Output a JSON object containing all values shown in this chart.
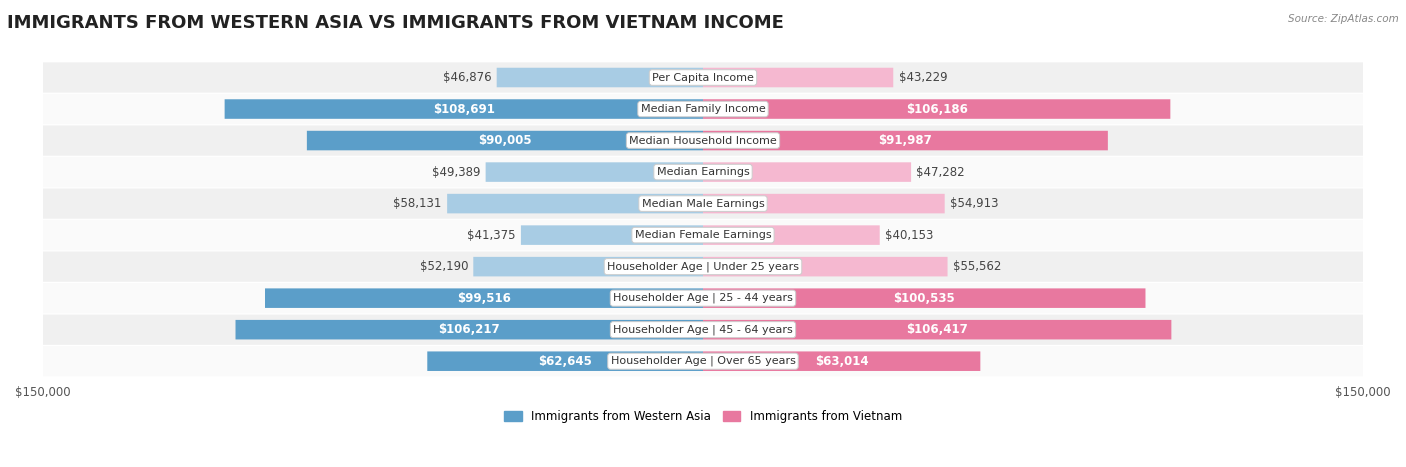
{
  "title": "IMMIGRANTS FROM WESTERN ASIA VS IMMIGRANTS FROM VIETNAM INCOME",
  "source": "Source: ZipAtlas.com",
  "categories": [
    "Per Capita Income",
    "Median Family Income",
    "Median Household Income",
    "Median Earnings",
    "Median Male Earnings",
    "Median Female Earnings",
    "Householder Age | Under 25 years",
    "Householder Age | 25 - 44 years",
    "Householder Age | 45 - 64 years",
    "Householder Age | Over 65 years"
  ],
  "western_asia_values": [
    46876,
    108691,
    90005,
    49389,
    58131,
    41375,
    52190,
    99516,
    106217,
    62645
  ],
  "vietnam_values": [
    43229,
    106186,
    91987,
    47282,
    54913,
    40153,
    55562,
    100535,
    106417,
    63014
  ],
  "western_asia_labels": [
    "$46,876",
    "$108,691",
    "$90,005",
    "$49,389",
    "$58,131",
    "$41,375",
    "$52,190",
    "$99,516",
    "$106,217",
    "$62,645"
  ],
  "vietnam_labels": [
    "$43,229",
    "$106,186",
    "$91,987",
    "$47,282",
    "$54,913",
    "$40,153",
    "$55,562",
    "$100,535",
    "$106,417",
    "$63,014"
  ],
  "western_asia_color_light": "#a8cce4",
  "western_asia_color_dark": "#5b9ec9",
  "vietnam_color_light": "#f5b8d0",
  "vietnam_color_dark": "#e8789f",
  "row_bg_color_odd": "#f0f0f0",
  "row_bg_color_even": "#fafafa",
  "max_value": 150000,
  "legend_label_west": "Immigrants from Western Asia",
  "legend_label_viet": "Immigrants from Vietnam",
  "title_fontsize": 13,
  "label_fontsize": 8.5,
  "category_fontsize": 8.0,
  "axis_label_fontsize": 8.5,
  "inside_label_threshold": 60000
}
